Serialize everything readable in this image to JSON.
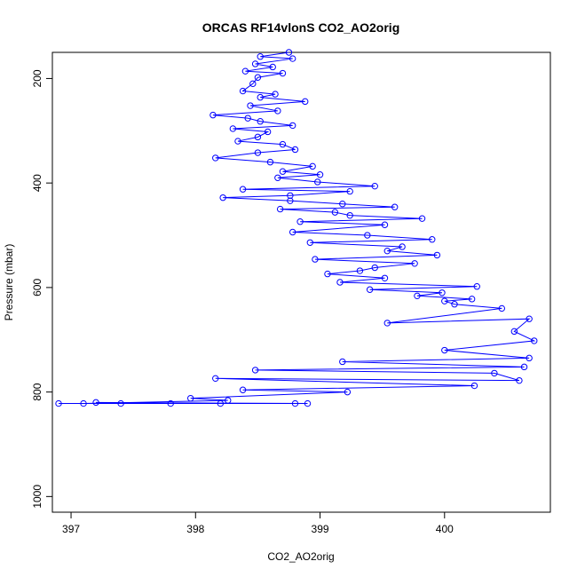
{
  "chart_data": {
    "type": "scatter",
    "title": "ORCAS RF14vlonS CO2_AO2orig",
    "xlabel": "CO2_AO2orig",
    "ylabel": "Pressure (mbar)",
    "xlim": [
      396.85,
      400.85
    ],
    "ylim": [
      1030,
      150
    ],
    "y_inverted": true,
    "x_ticks": [
      397,
      398,
      399,
      400
    ],
    "y_ticks": [
      200,
      400,
      600,
      800,
      1000
    ],
    "grid": false,
    "legend": "none",
    "style": {
      "color": "#0000ff",
      "marker": "open-circle",
      "connect": "lines-and-points"
    },
    "series": [
      {
        "values": [
          [
            398.75,
            150
          ],
          [
            398.52,
            158
          ],
          [
            398.78,
            162
          ],
          [
            398.48,
            172
          ],
          [
            398.62,
            178
          ],
          [
            398.4,
            186
          ],
          [
            398.7,
            190
          ],
          [
            398.5,
            198
          ],
          [
            398.46,
            210
          ],
          [
            398.38,
            224
          ],
          [
            398.64,
            230
          ],
          [
            398.52,
            236
          ],
          [
            398.88,
            244
          ],
          [
            398.44,
            252
          ],
          [
            398.66,
            262
          ],
          [
            398.14,
            270
          ],
          [
            398.42,
            276
          ],
          [
            398.52,
            282
          ],
          [
            398.78,
            290
          ],
          [
            398.3,
            296
          ],
          [
            398.58,
            302
          ],
          [
            398.5,
            312
          ],
          [
            398.34,
            320
          ],
          [
            398.7,
            326
          ],
          [
            398.8,
            336
          ],
          [
            398.5,
            342
          ],
          [
            398.16,
            352
          ],
          [
            398.6,
            360
          ],
          [
            398.94,
            368
          ],
          [
            398.7,
            378
          ],
          [
            399.0,
            384
          ],
          [
            398.66,
            390
          ],
          [
            398.98,
            398
          ],
          [
            399.44,
            406
          ],
          [
            398.38,
            412
          ],
          [
            399.24,
            416
          ],
          [
            398.76,
            424
          ],
          [
            398.22,
            428
          ],
          [
            398.76,
            434
          ],
          [
            399.18,
            440
          ],
          [
            399.6,
            446
          ],
          [
            398.68,
            450
          ],
          [
            399.12,
            456
          ],
          [
            399.24,
            462
          ],
          [
            399.82,
            468
          ],
          [
            398.84,
            474
          ],
          [
            399.52,
            480
          ],
          [
            398.78,
            494
          ],
          [
            399.38,
            500
          ],
          [
            399.9,
            508
          ],
          [
            398.92,
            514
          ],
          [
            399.66,
            522
          ],
          [
            399.54,
            530
          ],
          [
            399.94,
            538
          ],
          [
            398.96,
            546
          ],
          [
            399.76,
            554
          ],
          [
            399.44,
            562
          ],
          [
            399.32,
            568
          ],
          [
            399.06,
            574
          ],
          [
            399.52,
            582
          ],
          [
            399.16,
            590
          ],
          [
            400.26,
            598
          ],
          [
            399.4,
            604
          ],
          [
            399.98,
            610
          ],
          [
            399.78,
            616
          ],
          [
            400.22,
            622
          ],
          [
            400.0,
            626
          ],
          [
            400.08,
            632
          ],
          [
            400.46,
            640
          ],
          [
            399.54,
            668
          ],
          [
            400.68,
            660
          ],
          [
            400.56,
            684
          ],
          [
            400.72,
            702
          ],
          [
            400.0,
            720
          ],
          [
            400.68,
            735
          ],
          [
            399.18,
            742
          ],
          [
            400.64,
            752
          ],
          [
            398.48,
            758
          ],
          [
            400.4,
            764
          ],
          [
            400.6,
            778
          ],
          [
            398.16,
            774
          ],
          [
            400.24,
            788
          ],
          [
            398.38,
            796
          ],
          [
            399.22,
            800
          ],
          [
            397.96,
            812
          ],
          [
            398.26,
            816
          ],
          [
            397.1,
            822
          ],
          [
            396.9,
            822
          ],
          [
            397.8,
            822
          ],
          [
            398.2,
            822
          ],
          [
            398.8,
            822
          ],
          [
            398.9,
            822
          ],
          [
            397.2,
            820
          ],
          [
            397.4,
            822
          ]
        ]
      }
    ]
  }
}
